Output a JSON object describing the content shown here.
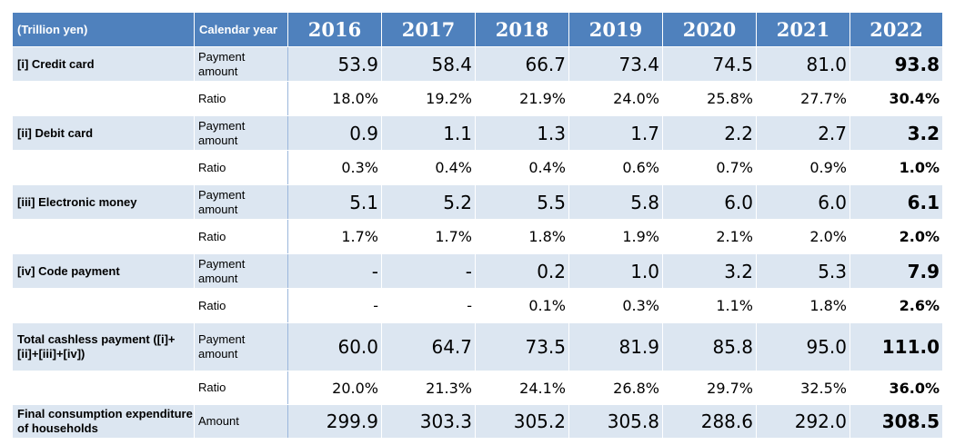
{
  "header": {
    "unit_label": "(Trillion yen)",
    "year_label": "Calendar year",
    "years": [
      "2016",
      "2017",
      "2018",
      "2019",
      "2020",
      "2021",
      "2022"
    ]
  },
  "rows": [
    {
      "item": "[i] Credit card",
      "kind": "Payment amount",
      "values": [
        "53.9",
        "58.4",
        "66.7",
        "73.4",
        "74.5",
        "81.0",
        "93.8"
      ]
    },
    {
      "item": "",
      "kind": "Ratio",
      "values": [
        "18.0%",
        "19.2%",
        "21.9%",
        "24.0%",
        "25.8%",
        "27.7%",
        "30.4%"
      ]
    },
    {
      "item": "[ii] Debit card",
      "kind": "Payment amount",
      "values": [
        "0.9",
        "1.1",
        "1.3",
        "1.7",
        "2.2",
        "2.7",
        "3.2"
      ]
    },
    {
      "item": "",
      "kind": "Ratio",
      "values": [
        "0.3%",
        "0.4%",
        "0.4%",
        "0.6%",
        "0.7%",
        "0.9%",
        "1.0%"
      ]
    },
    {
      "item": "[iii] Electronic money",
      "kind": "Payment amount",
      "values": [
        "5.1",
        "5.2",
        "5.5",
        "5.8",
        "6.0",
        "6.0",
        "6.1"
      ]
    },
    {
      "item": "",
      "kind": "Ratio",
      "values": [
        "1.7%",
        "1.7%",
        "1.8%",
        "1.9%",
        "2.1%",
        "2.0%",
        "2.0%"
      ]
    },
    {
      "item": "[iv] Code payment",
      "kind": "Payment amount",
      "values": [
        "-",
        "-",
        "0.2",
        "1.0",
        "3.2",
        "5.3",
        "7.9"
      ]
    },
    {
      "item": "",
      "kind": "Ratio",
      "values": [
        "-",
        "-",
        "0.1%",
        "0.3%",
        "1.1%",
        "1.8%",
        "2.6%"
      ]
    },
    {
      "item": "Total cashless payment ([i]+[ii]+[iii]+[iv])",
      "kind": "Payment amount",
      "values": [
        "60.0",
        "64.7",
        "73.5",
        "81.9",
        "85.8",
        "95.0",
        "111.0"
      ]
    },
    {
      "item": "",
      "kind": "Ratio",
      "values": [
        "20.0%",
        "21.3%",
        "24.1%",
        "26.8%",
        "29.7%",
        "32.5%",
        "36.0%"
      ]
    },
    {
      "item": "Final consumption expenditure of households",
      "kind": "Amount",
      "values": [
        "299.9",
        "303.3",
        "305.2",
        "305.8",
        "288.6",
        "292.0",
        "308.5"
      ]
    }
  ]
}
